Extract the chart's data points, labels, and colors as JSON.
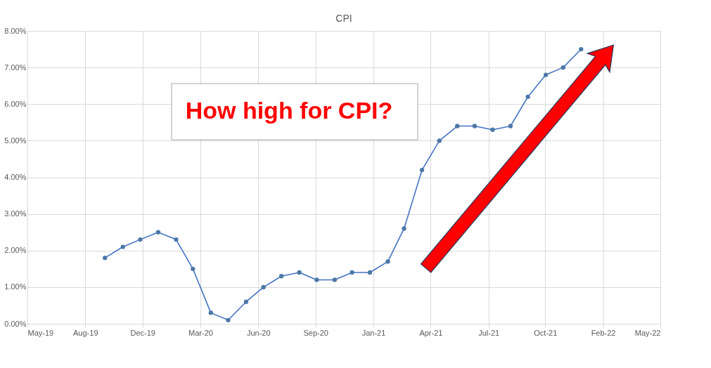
{
  "chart_data": {
    "type": "line",
    "title": "CPI",
    "x": [
      "2019-10-01",
      "2019-11-01",
      "2019-12-01",
      "2020-01-01",
      "2020-02-01",
      "2020-03-01",
      "2020-04-01",
      "2020-05-01",
      "2020-06-01",
      "2020-07-01",
      "2020-08-01",
      "2020-09-01",
      "2020-10-01",
      "2020-11-01",
      "2020-12-01",
      "2021-01-01",
      "2021-02-01",
      "2021-03-01",
      "2021-04-01",
      "2021-05-01",
      "2021-06-01",
      "2021-07-01",
      "2021-08-01",
      "2021-09-01",
      "2021-10-01",
      "2021-11-01",
      "2021-12-01",
      "2022-01-01"
    ],
    "series": [
      {
        "color": "#4472c4",
        "values": [
          1.8,
          2.1,
          2.3,
          2.5,
          2.3,
          1.5,
          0.3,
          0.1,
          0.6,
          1.0,
          1.3,
          1.4,
          1.2,
          1.2,
          1.4,
          1.4,
          1.7,
          2.6,
          4.2,
          5.0,
          5.4,
          5.4,
          5.3,
          5.4,
          6.2,
          6.8,
          7.0,
          7.5
        ]
      }
    ],
    "xlim": [
      "2019-05-20",
      "2022-05-18"
    ],
    "xticks": [
      {
        "value": "2019-05-20",
        "label": "May-19"
      },
      {
        "value": "2019-08-28",
        "label": "Aug-19"
      },
      {
        "value": "2019-12-05",
        "label": "Dec-19"
      },
      {
        "value": "2020-03-14",
        "label": "Mar-20"
      },
      {
        "value": "2020-06-22",
        "label": "Jun-20"
      },
      {
        "value": "2020-09-29",
        "label": "Sep-20"
      },
      {
        "value": "2021-01-07",
        "label": "Jan-21"
      },
      {
        "value": "2021-04-16",
        "label": "Apr-21"
      },
      {
        "value": "2021-07-25",
        "label": "Jul-21"
      },
      {
        "value": "2021-10-31",
        "label": "Oct-21"
      },
      {
        "value": "2022-02-08",
        "label": "Feb-22"
      },
      {
        "value": "2022-05-18",
        "label": "May-22"
      }
    ],
    "ylim": [
      0,
      8
    ],
    "yticks": [
      {
        "value": 0,
        "label": "0.00%"
      },
      {
        "value": 1,
        "label": "1.00%"
      },
      {
        "value": 2,
        "label": "2.00%"
      },
      {
        "value": 3,
        "label": "3.00%"
      },
      {
        "value": 4,
        "label": "4.00%"
      },
      {
        "value": 5,
        "label": "5.00%"
      },
      {
        "value": 6,
        "label": "6.00%"
      },
      {
        "value": 7,
        "label": "7.00%"
      },
      {
        "value": 8,
        "label": "8.00%"
      }
    ],
    "grid": true,
    "marker": "circle",
    "line_style": "solid",
    "annotations": [
      "How high for CPI?"
    ]
  }
}
